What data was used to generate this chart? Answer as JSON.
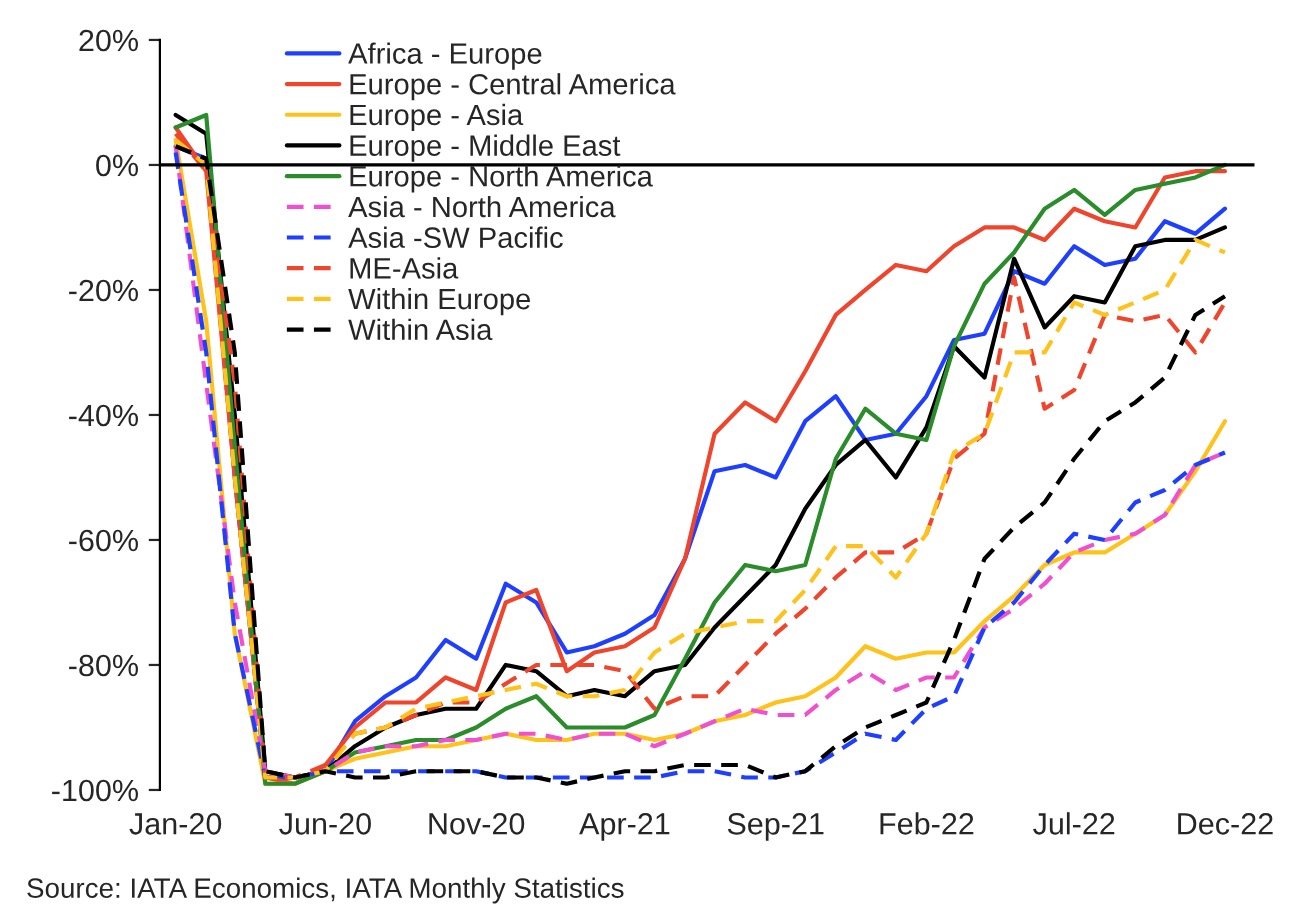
{
  "chart_data": {
    "type": "line",
    "x": [
      "2020-01",
      "2020-02",
      "2020-03",
      "2020-04",
      "2020-05",
      "2020-06",
      "2020-07",
      "2020-08",
      "2020-09",
      "2020-10",
      "2020-11",
      "2020-12",
      "2021-01",
      "2021-02",
      "2021-03",
      "2021-04",
      "2021-05",
      "2021-06",
      "2021-07",
      "2021-08",
      "2021-09",
      "2021-10",
      "2021-11",
      "2021-12",
      "2022-01",
      "2022-02",
      "2022-03",
      "2022-04",
      "2022-05",
      "2022-06",
      "2022-07",
      "2022-08",
      "2022-09",
      "2022-10",
      "2022-11",
      "2022-12"
    ],
    "series": [
      {
        "name": "Africa - Europe",
        "color": "#1f3fff",
        "line_style": "solid",
        "values": [
          3,
          1,
          -50,
          -98,
          -98,
          -97,
          -89,
          -85,
          -82,
          -76,
          -79,
          -67,
          -70,
          -78,
          -77,
          -75,
          -72,
          -63,
          -49,
          -48,
          -50,
          -41,
          -37,
          -44,
          -43,
          -37,
          -28,
          -27,
          -17,
          -19,
          -13,
          -16,
          -15,
          -9,
          -11,
          -7
        ]
      },
      {
        "name": "Europe - Central America",
        "color": "#f0452d",
        "line_style": "solid",
        "values": [
          6,
          -1,
          -50,
          -98,
          -99,
          -96,
          -90,
          -86,
          -86,
          -82,
          -84,
          -70,
          -68,
          -81,
          -78,
          -77,
          -74,
          -63,
          -43,
          -38,
          -41,
          -33,
          -24,
          -20,
          -16,
          -17,
          -13,
          -10,
          -10,
          -12,
          -7,
          -9,
          -10,
          -2,
          -1,
          -1
        ]
      },
      {
        "name": "Europe - Asia",
        "color": "#ffc21a",
        "line_style": "solid",
        "values": [
          4,
          -25,
          -75,
          -99,
          -99,
          -97,
          -95,
          -94,
          -93,
          -93,
          -92,
          -91,
          -92,
          -92,
          -91,
          -91,
          -92,
          -91,
          -89,
          -88,
          -86,
          -85,
          -82,
          -77,
          -79,
          -78,
          -78,
          -73,
          -69,
          -64,
          -62,
          -62,
          -59,
          -56,
          -49,
          -41
        ]
      },
      {
        "name": "Europe - Middle East",
        "color": "#000000",
        "line_style": "solid",
        "values": [
          8,
          5,
          -40,
          -97,
          -98,
          -97,
          -93,
          -90,
          -88,
          -87,
          -87,
          -80,
          -81,
          -85,
          -84,
          -85,
          -81,
          -80,
          -74,
          -69,
          -64,
          -55,
          -48,
          -44,
          -50,
          -42,
          -29,
          -34,
          -15,
          -26,
          -21,
          -22,
          -13,
          -12,
          -12,
          -10
        ]
      },
      {
        "name": "Europe - North America",
        "color": "#2a8c2a",
        "line_style": "solid",
        "values": [
          6,
          8,
          -45,
          -99,
          -99,
          -97,
          -94,
          -93,
          -92,
          -92,
          -90,
          -87,
          -85,
          -90,
          -90,
          -90,
          -88,
          -79,
          -70,
          -64,
          -65,
          -64,
          -47,
          -39,
          -43,
          -44,
          -29,
          -19,
          -14,
          -7,
          -4,
          -8,
          -4,
          -3,
          -2,
          0
        ]
      },
      {
        "name": "Asia - North America",
        "color": "#f050d0",
        "line_style": "dashed",
        "values": [
          3,
          -35,
          -70,
          -97,
          -98,
          -97,
          -94,
          -93,
          -93,
          -92,
          -92,
          -91,
          -91,
          -92,
          -91,
          -91,
          -93,
          -91,
          -89,
          -87,
          -88,
          -88,
          -84,
          -81,
          -84,
          -82,
          -82,
          -74,
          -71,
          -67,
          -62,
          -60,
          -59,
          -56,
          -48,
          -46
        ]
      },
      {
        "name": "Asia -SW Pacific",
        "color": "#1f3fff",
        "line_style": "dashed",
        "values": [
          2,
          -30,
          -75,
          -98,
          -98,
          -97,
          -97,
          -97,
          -97,
          -97,
          -97,
          -98,
          -98,
          -98,
          -98,
          -98,
          -98,
          -97,
          -97,
          -98,
          -98,
          -97,
          -94,
          -91,
          -92,
          -87,
          -85,
          -74,
          -70,
          -64,
          -59,
          -60,
          -54,
          -52,
          -48,
          -46
        ]
      },
      {
        "name": "ME-Asia",
        "color": "#f0452d",
        "line_style": "dashed",
        "values": [
          5,
          -1,
          -35,
          -98,
          -98,
          -96,
          -91,
          -90,
          -88,
          -86,
          -86,
          -83,
          -80,
          -80,
          -80,
          -81,
          -87,
          -85,
          -85,
          -80,
          -75,
          -71,
          -66,
          -62,
          -62,
          -59,
          -47,
          -43,
          -18,
          -39,
          -36,
          -24,
          -25,
          -24,
          -30,
          -22
        ]
      },
      {
        "name": "Within Europe",
        "color": "#ffc21a",
        "line_style": "dashed",
        "values": [
          4,
          0,
          -50,
          -98,
          -98,
          -97,
          -91,
          -90,
          -87,
          -86,
          -85,
          -84,
          -83,
          -85,
          -85,
          -84,
          -78,
          -75,
          -74,
          -73,
          -73,
          -68,
          -61,
          -61,
          -66,
          -59,
          -46,
          -43,
          -30,
          -30,
          -22,
          -24,
          -22,
          -20,
          -12,
          -14
        ]
      },
      {
        "name": "Within Asia",
        "color": "#000000",
        "line_style": "dashed",
        "values": [
          3,
          1,
          -30,
          -97,
          -98,
          -97,
          -98,
          -98,
          -97,
          -97,
          -97,
          -98,
          -98,
          -99,
          -98,
          -97,
          -97,
          -96,
          -96,
          -96,
          -98,
          -97,
          -93,
          -90,
          -88,
          -86,
          -76,
          -63,
          -58,
          -54,
          -47,
          -41,
          -38,
          -34,
          -24,
          -21
        ]
      }
    ],
    "xlim": [
      "2019-12-16",
      "2022-12-31"
    ],
    "xticks": [
      {
        "value": "2020-01",
        "label": "Jan-20"
      },
      {
        "value": "2020-06",
        "label": "Jun-20"
      },
      {
        "value": "2020-11",
        "label": "Nov-20"
      },
      {
        "value": "2021-04",
        "label": "Apr-21"
      },
      {
        "value": "2021-09",
        "label": "Sep-21"
      },
      {
        "value": "2022-02",
        "label": "Feb-22"
      },
      {
        "value": "2022-07",
        "label": "Jul-22"
      },
      {
        "value": "2022-12",
        "label": "Dec-22"
      }
    ],
    "ylim": [
      -100,
      20
    ],
    "yticks": [
      {
        "value": -100,
        "label": "-100%"
      },
      {
        "value": -80,
        "label": "-80%"
      },
      {
        "value": -60,
        "label": "-60%"
      },
      {
        "value": -40,
        "label": "-40%"
      },
      {
        "value": -20,
        "label": "-20%"
      },
      {
        "value": 0,
        "label": "0%"
      },
      {
        "value": 20,
        "label": "20%"
      }
    ],
    "grid": false,
    "ref_lines": [
      {
        "axis": "y",
        "value": 0,
        "color": "#000000",
        "line_style": "solid"
      }
    ],
    "legend": "top left",
    "annotations": [
      "Source: IATA Economics, IATA Monthly Statistics"
    ]
  }
}
